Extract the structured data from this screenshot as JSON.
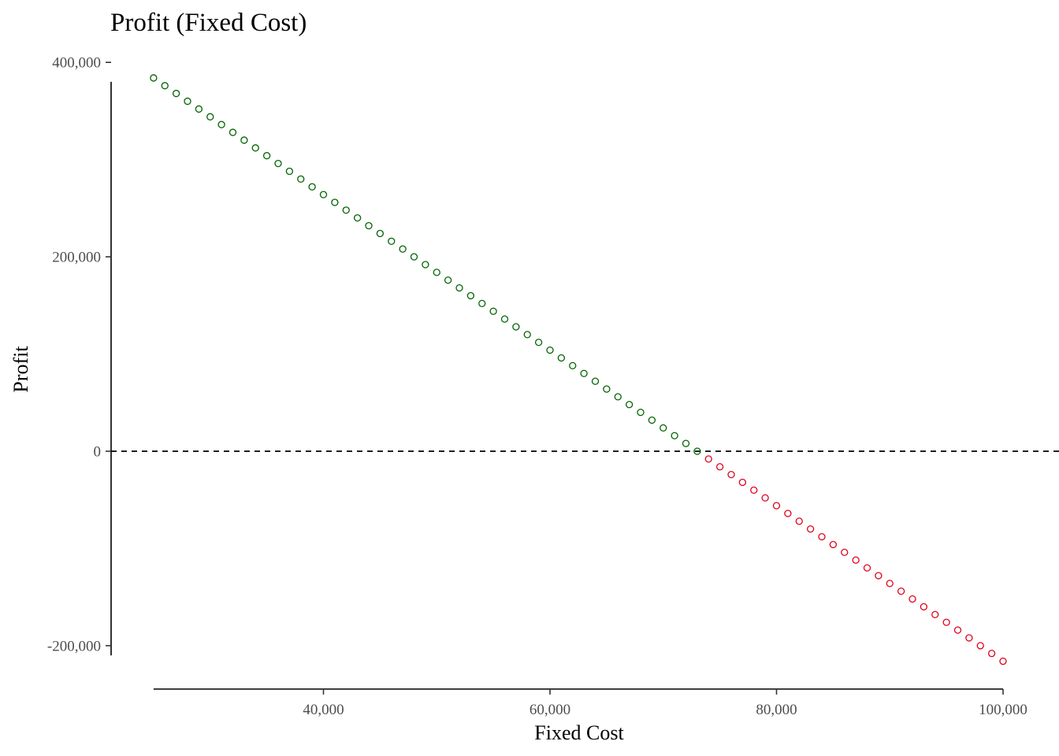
{
  "chart_data": {
    "type": "scatter",
    "title": "Profit (Fixed Cost)",
    "xlabel": "Fixed Cost",
    "ylabel": "Profit",
    "xlim": [
      25000,
      100000
    ],
    "ylim": [
      -210000,
      380000
    ],
    "x_ticks": [
      {
        "value": 40000,
        "label": "40,000"
      },
      {
        "value": 60000,
        "label": "60,000"
      },
      {
        "value": 80000,
        "label": "80,000"
      },
      {
        "value": 100000,
        "label": "100,000"
      }
    ],
    "y_ticks": [
      {
        "value": 400000,
        "label": "400,000"
      },
      {
        "value": 200000,
        "label": "200,000"
      },
      {
        "value": 0,
        "label": "0"
      },
      {
        "value": -200000,
        "label": "-200,000"
      }
    ],
    "reference_line": {
      "orientation": "horizontal",
      "value": 0,
      "style": "dashed"
    },
    "points": {
      "x_start": 25000,
      "x_end": 100000,
      "x_step": 1000,
      "profit_at_x_start": 384000,
      "profit_at_x_end": -216000
    },
    "colors": {
      "positive": "#006400",
      "negative": "#e0001b"
    },
    "grid": false,
    "legend": "none"
  }
}
